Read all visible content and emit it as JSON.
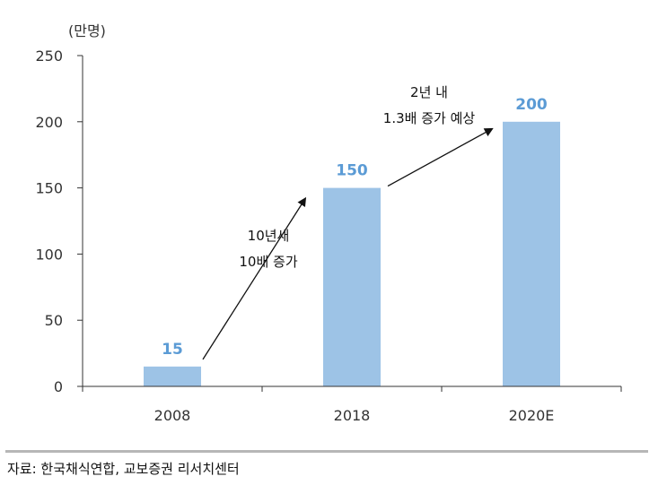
{
  "chart_data": {
    "type": "bar",
    "unit": "(만명)",
    "categories": [
      "2008",
      "2018",
      "2020E"
    ],
    "values": [
      15,
      150,
      200
    ],
    "data_labels": [
      "15",
      "150",
      "200"
    ],
    "ylim": [
      0,
      250
    ],
    "yticks": [
      "0",
      "50",
      "100",
      "150",
      "200",
      "250"
    ],
    "grid": false,
    "bar_color": "#9dc3e6",
    "label_color": "#5b9bd5",
    "annotations": [
      {
        "lines": [
          "10년새",
          "10배 증가"
        ]
      },
      {
        "lines": [
          "2년 내",
          "1.3배 증가 예상"
        ]
      }
    ]
  },
  "source": "자료: 한국채식연합, 교보증권 리서치센터"
}
